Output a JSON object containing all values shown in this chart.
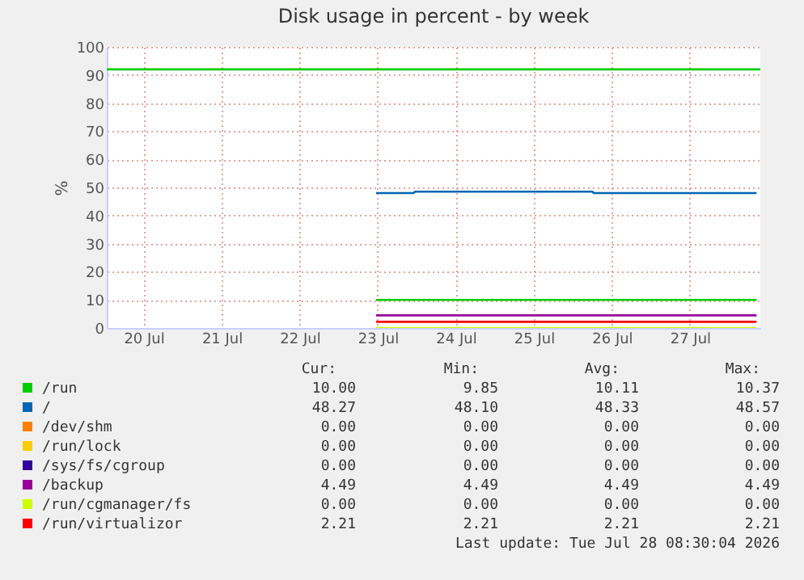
{
  "chart_data": {
    "type": "line",
    "title": "Disk usage in percent - by week",
    "ylabel": "%",
    "xlim": [
      "2026-07-20T00:40",
      "2026-07-28T09:40"
    ],
    "xticks": [
      {
        "value": "2026-07-20T12:00",
        "label": "20 Jul"
      },
      {
        "value": "2026-07-21T12:00",
        "label": "21 Jul"
      },
      {
        "value": "2026-07-22T12:00",
        "label": "22 Jul"
      },
      {
        "value": "2026-07-23T12:00",
        "label": "23 Jul"
      },
      {
        "value": "2026-07-24T12:00",
        "label": "24 Jul"
      },
      {
        "value": "2026-07-25T12:00",
        "label": "25 Jul"
      },
      {
        "value": "2026-07-26T12:00",
        "label": "26 Jul"
      },
      {
        "value": "2026-07-27T12:00",
        "label": "27 Jul"
      }
    ],
    "ylim": [
      0,
      100
    ],
    "yticks": [
      0,
      10,
      20,
      30,
      40,
      50,
      60,
      70,
      80,
      90,
      100
    ],
    "grid": true,
    "legend": "bottom",
    "series": [
      {
        "name": "/run",
        "color": "#00cc00",
        "x": [
          "2026-07-23T11:30",
          "2026-07-28T08:30"
        ],
        "values": [
          10,
          10
        ]
      },
      {
        "name": "/",
        "color": "#0066b3",
        "x": [
          "2026-07-23T11:30",
          "2026-07-23T23:00",
          "2026-07-23T23:30",
          "2026-07-26T06:00",
          "2026-07-26T06:30",
          "2026-07-28T08:30"
        ],
        "values": [
          48,
          48,
          48.5,
          48.5,
          48,
          48
        ]
      },
      {
        "name": "/dev/shm",
        "color": "#ff8000",
        "values": [
          null
        ]
      },
      {
        "name": "/run/lock",
        "color": "#ffcc00",
        "values": [
          null
        ]
      },
      {
        "name": "/sys/fs/cgroup",
        "color": "#330099",
        "values": [
          null
        ]
      },
      {
        "name": "/backup",
        "color": "#990099",
        "x": [
          "2026-07-23T11:30",
          "2026-07-28T08:30"
        ],
        "values": [
          4.5,
          4.5
        ]
      },
      {
        "name": "/run/cgmanager/fs",
        "color": "#ccff00",
        "x": [
          "2026-07-23T11:30",
          "2026-07-28T08:30"
        ],
        "values": [
          0,
          0
        ]
      },
      {
        "name": "/run/virtualizor",
        "color": "#ff0000",
        "x": [
          "2026-07-23T11:30",
          "2026-07-28T08:30"
        ],
        "values": [
          2.2,
          2.2
        ]
      }
    ],
    "ref_lines": [
      {
        "axis": "y",
        "value": 92,
        "color": "#00cc00"
      }
    ],
    "annotations": [
      "Cur:",
      "Min:",
      "Avg:",
      "Max:",
      "10.00",
      "9.85",
      "10.11",
      "10.37",
      "48.27",
      "48.10",
      "48.33",
      "48.57",
      "0.00",
      "0.00",
      "0.00",
      "0.00",
      "0.00",
      "0.00",
      "0.00",
      "0.00",
      "0.00",
      "0.00",
      "0.00",
      "0.00",
      "4.49",
      "4.49",
      "4.49",
      "4.49",
      "0.00",
      "0.00",
      "0.00",
      "0.00",
      "2.21",
      "2.21",
      "2.21",
      "2.21",
      "Last update: Tue Jul 28 08:30:04 2026"
    ]
  }
}
